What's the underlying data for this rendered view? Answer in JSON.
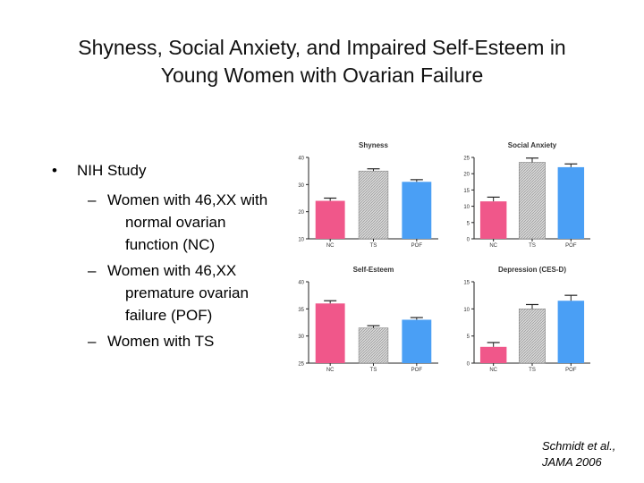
{
  "slide": {
    "title_line1": "Shyness, Social Anxiety, and Impaired Self-Esteem in",
    "title_line2": "Young Women with Ovarian Failure",
    "bullet_main": "NIH Study",
    "bullet_symbol": "•",
    "dash_symbol": "–",
    "sub_bullets": [
      "Women with 46,XX with normal ovarian function (NC)",
      "Women with 46,XX premature ovarian failure (POF)",
      "Women with TS"
    ],
    "citation_line1": "Schmidt et al.,",
    "citation_line2": "JAMA 2006"
  },
  "colors": {
    "nc": "#f0578a",
    "ts": "#d0d0d0",
    "pof": "#4a9ff5"
  },
  "chart_data": [
    {
      "type": "bar",
      "title": "Shyness",
      "categories": [
        "NC",
        "TS",
        "POF"
      ],
      "values": [
        24,
        35,
        31
      ],
      "errors": [
        1,
        0.8,
        0.8
      ],
      "ylim": [
        10,
        40
      ],
      "yticks": [
        10,
        20,
        30,
        40
      ],
      "xlabel": "",
      "ylabel": ""
    },
    {
      "type": "bar",
      "title": "Social Anxiety",
      "categories": [
        "NC",
        "TS",
        "POF"
      ],
      "values": [
        11.5,
        23.5,
        22
      ],
      "errors": [
        1.3,
        1.3,
        1
      ],
      "ylim": [
        0,
        25
      ],
      "yticks": [
        0,
        5,
        10,
        15,
        20,
        25
      ],
      "xlabel": "",
      "ylabel": ""
    },
    {
      "type": "bar",
      "title": "Self-Esteem",
      "categories": [
        "NC",
        "TS",
        "POF"
      ],
      "values": [
        36,
        31.5,
        33
      ],
      "errors": [
        0.5,
        0.4,
        0.4
      ],
      "ylim": [
        25,
        40
      ],
      "yticks": [
        25,
        30,
        35,
        40
      ],
      "xlabel": "",
      "ylabel": ""
    },
    {
      "type": "bar",
      "title": "Depression (CES-D)",
      "categories": [
        "NC",
        "TS",
        "POF"
      ],
      "values": [
        3,
        10,
        11.5
      ],
      "errors": [
        0.8,
        0.8,
        1
      ],
      "ylim": [
        0,
        15
      ],
      "yticks": [
        0,
        5,
        10,
        15
      ],
      "xlabel": "",
      "ylabel": ""
    }
  ]
}
